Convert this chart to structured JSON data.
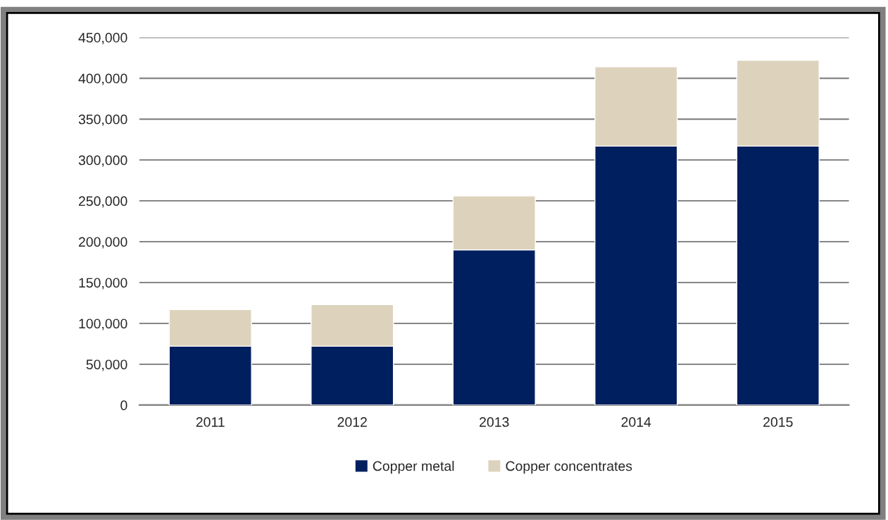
{
  "chart_data": {
    "type": "bar",
    "stacked": true,
    "categories": [
      "2011",
      "2012",
      "2013",
      "2014",
      "2015"
    ],
    "series": [
      {
        "name": "Copper metal",
        "color": "#001f5f",
        "values": [
          72000,
          72000,
          190000,
          317000,
          317000
        ]
      },
      {
        "name": "Copper concentrates",
        "color": "#ddd3bd",
        "values": [
          45000,
          51000,
          66000,
          97000,
          105000
        ]
      }
    ],
    "ylim": [
      0,
      450000
    ],
    "yticks": [
      {
        "value": 0,
        "label": "0"
      },
      {
        "value": 50000,
        "label": "50,000"
      },
      {
        "value": 100000,
        "label": "100,000"
      },
      {
        "value": 150000,
        "label": "150,000"
      },
      {
        "value": 200000,
        "label": "200,000"
      },
      {
        "value": 250000,
        "label": "250,000"
      },
      {
        "value": 300000,
        "label": "300,000"
      },
      {
        "value": 350000,
        "label": "350,000"
      },
      {
        "value": 400000,
        "label": "400,000"
      },
      {
        "value": 450000,
        "label": "450,000"
      }
    ],
    "grid": "y",
    "legend": "bottom"
  }
}
